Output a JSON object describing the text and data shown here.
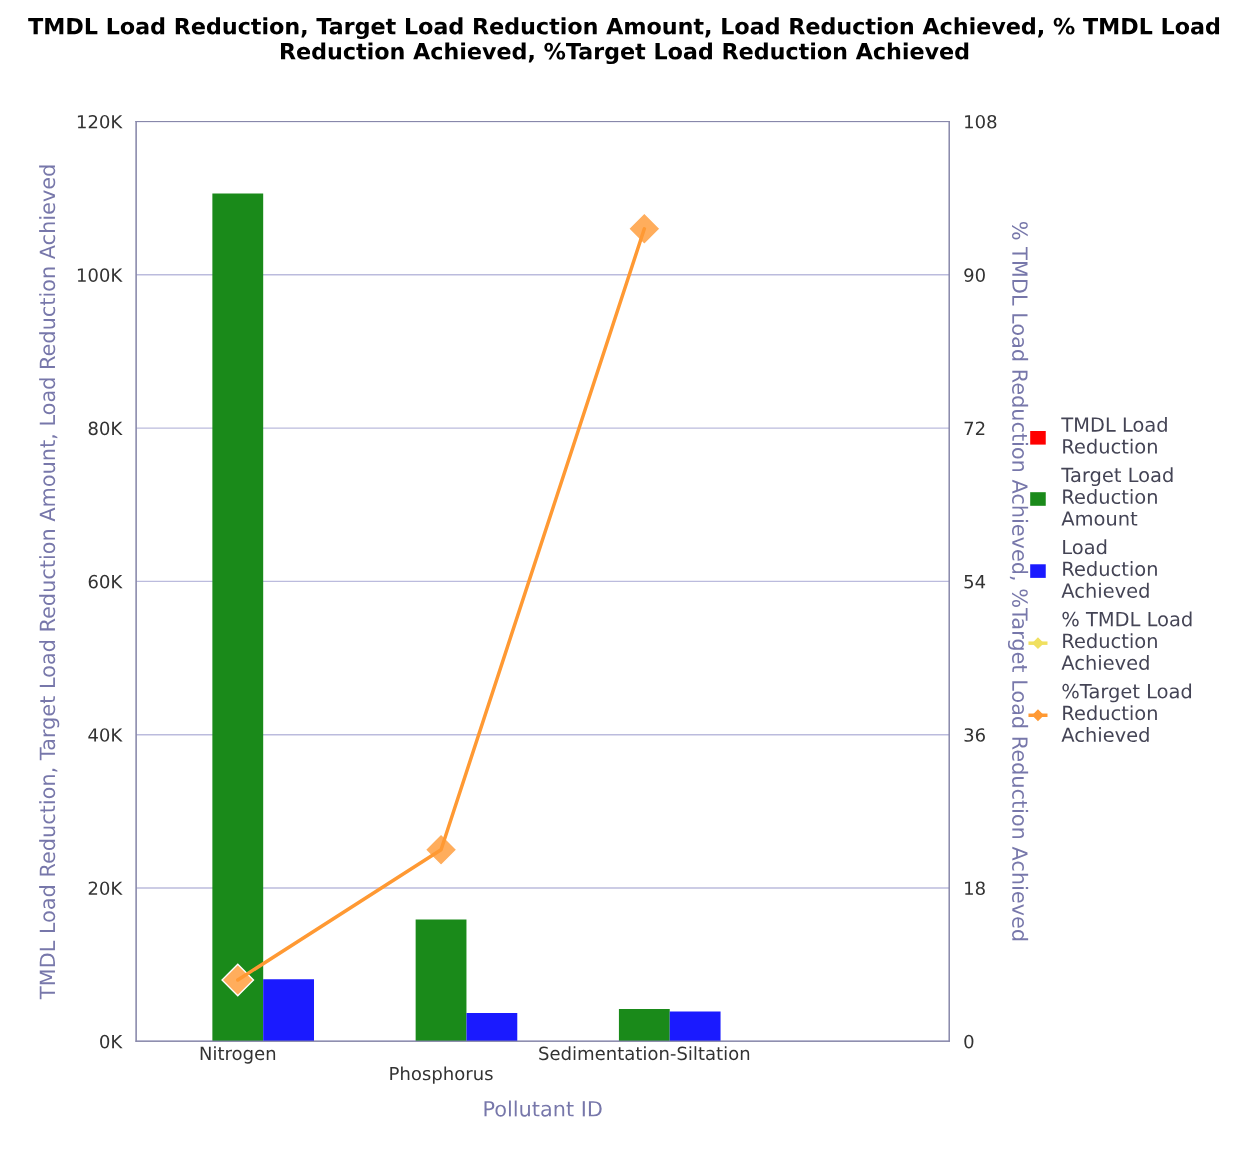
{
  "chart_data": {
    "type": "bar",
    "title": "TMDL Load Reduction, Target Load Reduction Amount, Load Reduction Achieved, % TMDL Load Reduction Achieved, %Target Load Reduction Achieved",
    "xlabel": "Pollutant ID",
    "ylabel": "TMDL Load Reduction, Target Load Reduction Amount, Load Reduction Achieved",
    "y2label": "% TMDL Load Reduction Achieved, %Target Load Reduction Achieved",
    "categories": [
      "Nitrogen",
      "Phosphorus",
      "Sedimentation-Siltation",
      null
    ],
    "series": [
      {
        "name": "TMDL Load Reduction",
        "color": "#ff0000",
        "values": [
          null,
          null,
          null,
          null
        ]
      },
      {
        "name": "Target Load Reduction Amount",
        "color": "#1a8a1a",
        "values": [
          110600,
          15900,
          4200,
          null
        ]
      },
      {
        "name": "Load Reduction Achieved",
        "color": "#1a1aff",
        "values": [
          8100,
          3700,
          3900,
          null
        ]
      },
      {
        "name": "% TMDL Load Reduction Achieved",
        "type": "line",
        "axis": "y2",
        "color": "#f0e060",
        "values": [
          null,
          null,
          null,
          null
        ]
      },
      {
        "name": "%Target Load Reduction Achieved",
        "type": "line",
        "axis": "y2",
        "color": "#ff9933",
        "values": [
          7.2,
          22.5,
          95.4,
          null
        ]
      }
    ],
    "ylim": [
      0,
      120000
    ],
    "yticks": [
      {
        "value": 0,
        "label": "0K"
      },
      {
        "value": 20000,
        "label": "20K"
      },
      {
        "value": 40000,
        "label": "40K"
      },
      {
        "value": 60000,
        "label": "60K"
      },
      {
        "value": 80000,
        "label": "80K"
      },
      {
        "value": 100000,
        "label": "100K"
      },
      {
        "value": 120000,
        "label": "120K"
      }
    ],
    "y2lim": [
      0,
      108
    ],
    "y2ticks": [
      0,
      18,
      36,
      54,
      72,
      90,
      108
    ],
    "grid": "y",
    "legend": "right",
    "marker": "diamond"
  }
}
